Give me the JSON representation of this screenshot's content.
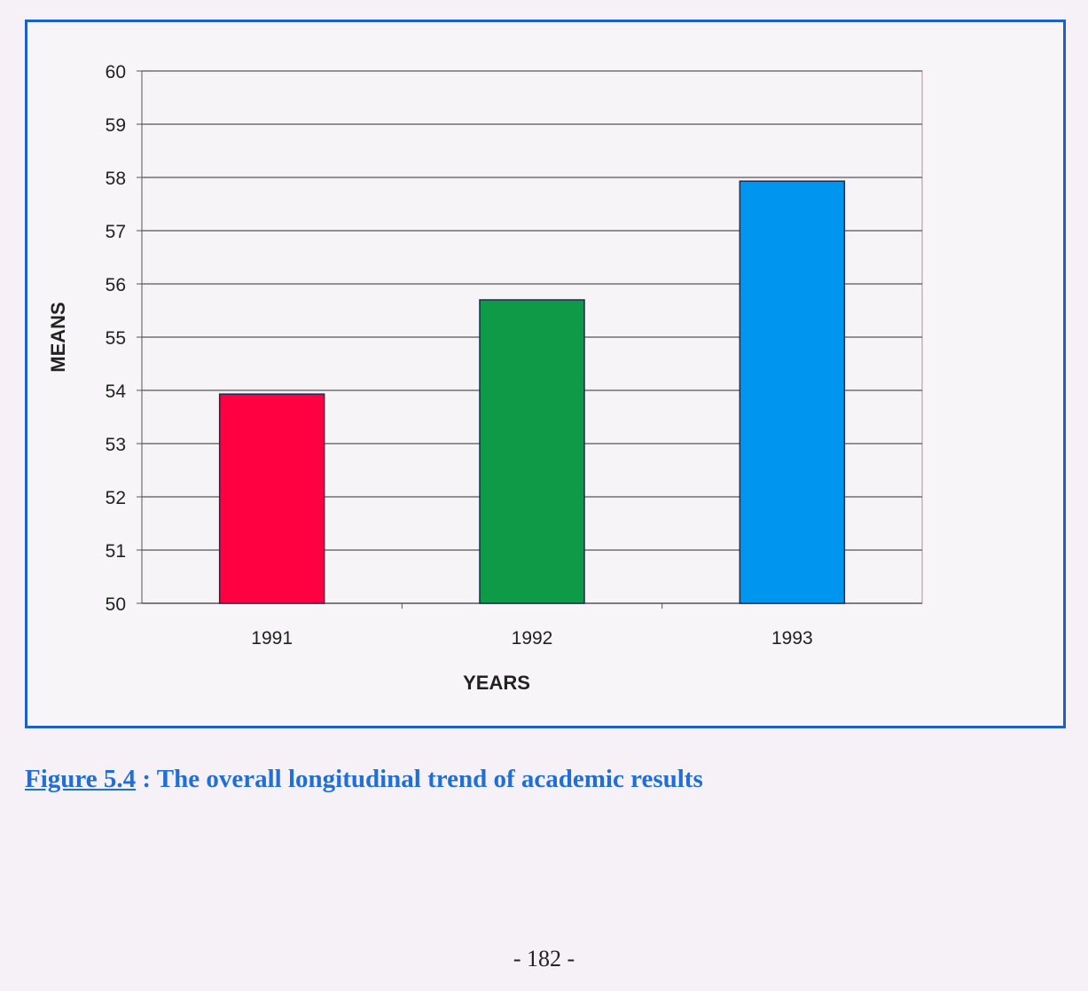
{
  "chart_data": {
    "type": "bar",
    "categories": [
      "1991",
      "1992",
      "1993"
    ],
    "values": [
      53.93,
      55.7,
      57.93
    ],
    "bar_colors": [
      "#ff0040",
      "#0f9a48",
      "#0096f0"
    ],
    "xlabel": "YEARS",
    "ylabel": "MEANS",
    "ylim": [
      50,
      60
    ],
    "yticks": [
      50,
      51,
      52,
      53,
      54,
      55,
      56,
      57,
      58,
      59,
      60
    ],
    "grid": true
  },
  "caption": {
    "figure_label": "Figure 5.4",
    "text": " : The overall longitudinal trend of academic results"
  },
  "page_number": "- 182 -"
}
